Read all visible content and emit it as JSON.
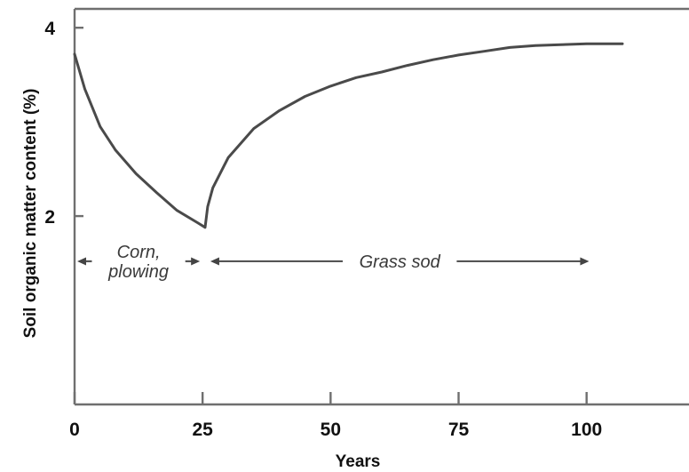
{
  "chart_data": {
    "type": "line",
    "title": "",
    "xlabel": "Years",
    "ylabel": "Soil organic matter content (%)",
    "xlim": [
      0,
      120
    ],
    "ylim": [
      0,
      4.2
    ],
    "x_ticks": [
      0,
      25,
      50,
      75,
      100
    ],
    "x_tick_labels": [
      "0",
      "25",
      "50",
      "75",
      "100"
    ],
    "y_ticks": [
      2,
      4
    ],
    "y_tick_labels": [
      "2",
      "4"
    ],
    "grid": false,
    "series": [
      {
        "color": "#4a4a4a",
        "x": [
          0,
          2,
          5,
          8,
          12,
          16,
          20,
          24,
          25.5,
          26,
          27,
          30,
          35,
          40,
          45,
          50,
          55,
          60,
          65,
          70,
          75,
          80,
          85,
          90,
          95,
          100,
          104,
          107
        ],
        "y": [
          3.72,
          3.35,
          2.95,
          2.7,
          2.45,
          2.25,
          2.06,
          1.93,
          1.88,
          2.1,
          2.3,
          2.62,
          2.93,
          3.12,
          3.27,
          3.38,
          3.47,
          3.53,
          3.6,
          3.66,
          3.71,
          3.75,
          3.79,
          3.81,
          3.82,
          3.83,
          3.83,
          3.83
        ]
      }
    ],
    "annotations": [
      {
        "id": "corn",
        "lines": [
          "Corn,",
          "plowing"
        ],
        "x_start": 0,
        "x_end": 25,
        "y": 1.52
      },
      {
        "id": "grass",
        "lines": [
          "Grass sod"
        ],
        "x_start": 26,
        "x_end": 101,
        "y": 1.52
      }
    ]
  }
}
